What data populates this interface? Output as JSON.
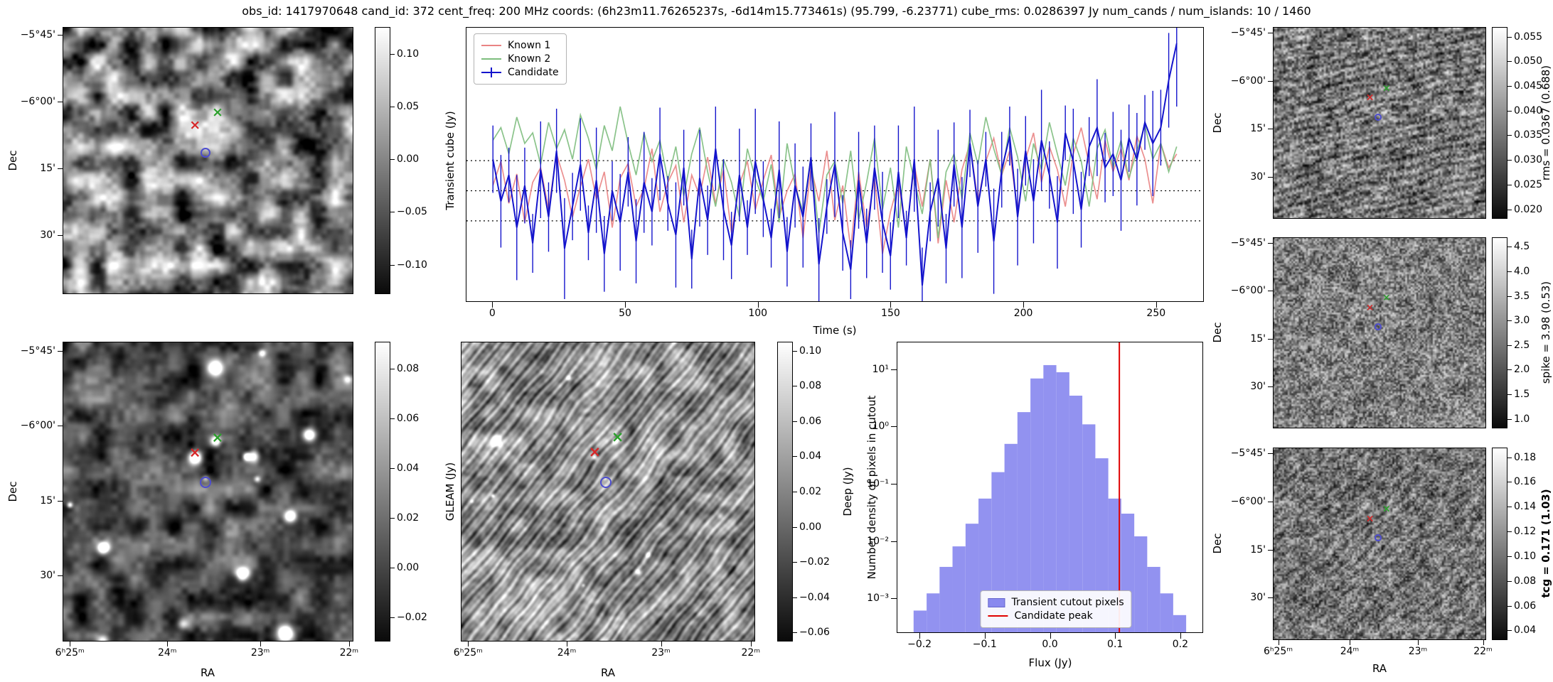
{
  "title": "obs_id: 1417970648 cand_id: 372 cent_freq: 200 MHz coords: (6h23m11.76265237s, -6d14m15.773461s) (95.799, -6.23771) cube_rms: 0.0286397 Jy num_cands / num_islands: 10 / 1460",
  "axes": {
    "dec_label": "Dec",
    "ra_label": "RA",
    "dec_ticks": [
      "−5°45'",
      "−6°00'",
      "15'",
      "30'"
    ],
    "ra_ticks": [
      "6ʰ25ᵐ",
      "24ᵐ",
      "23ᵐ",
      "22ᵐ"
    ]
  },
  "colorbars": {
    "transient": {
      "label": "Transient cube (Jy)",
      "ticks": [
        "0.10",
        "0.05",
        "0.00",
        "−0.05",
        "−0.10"
      ]
    },
    "gleam": {
      "label": "GLEAM (Jy)",
      "ticks": [
        "0.08",
        "0.06",
        "0.04",
        "0.02",
        "0.00",
        "−0.02"
      ]
    },
    "deep": {
      "label": "Deep (Jy)",
      "ticks": [
        "0.10",
        "0.08",
        "0.06",
        "0.04",
        "0.02",
        "0.00",
        "−0.02",
        "−0.04",
        "−0.06"
      ]
    },
    "rms": {
      "label": "rms = 0.0367 (0.688)",
      "ticks": [
        "0.055",
        "0.050",
        "0.045",
        "0.040",
        "0.035",
        "0.030",
        "0.025",
        "0.020"
      ]
    },
    "spike": {
      "label": "spike = 3.98 (0.53)",
      "ticks": [
        "4.5",
        "4.0",
        "3.5",
        "3.0",
        "2.5",
        "2.0",
        "1.5",
        "1.0"
      ]
    },
    "tcg": {
      "label": "tcg = 0.171 (1.03)",
      "ticks": [
        "0.18",
        "0.16",
        "0.14",
        "0.12",
        "0.10",
        "0.08",
        "0.06",
        "0.04"
      ],
      "bold": true
    }
  },
  "markers": {
    "known1": {
      "symbol": "x",
      "color": "#d62728",
      "rx": 0.455,
      "ry": 0.37
    },
    "known2": {
      "symbol": "x",
      "color": "#2ca02c",
      "rx": 0.533,
      "ry": 0.32
    },
    "candidate": {
      "symbol": "o",
      "color": "#4d4dd0",
      "rx": 0.492,
      "ry": 0.47
    }
  },
  "chart_data": [
    {
      "type": "line",
      "title": "",
      "xlabel": "Time (s)",
      "ylabel": "",
      "xlim": [
        -10,
        268
      ],
      "ylim": [
        -0.105,
        0.155
      ],
      "xticks": [
        0,
        50,
        100,
        150,
        200,
        250
      ],
      "xtick_labels": [
        "0",
        "50",
        "100",
        "150",
        "200",
        "250"
      ],
      "hlines": [
        0.0286397,
        0.0,
        -0.0286397
      ],
      "hline_style": "dotted",
      "legend_position": "upper left",
      "x": [
        0,
        3,
        6,
        9,
        12,
        15,
        18,
        21,
        24,
        27,
        30,
        33,
        36,
        39,
        42,
        45,
        48,
        51,
        54,
        57,
        60,
        63,
        66,
        69,
        72,
        75,
        78,
        81,
        84,
        87,
        90,
        93,
        96,
        99,
        102,
        105,
        108,
        111,
        114,
        117,
        120,
        123,
        126,
        129,
        132,
        135,
        138,
        141,
        144,
        147,
        150,
        153,
        156,
        159,
        162,
        165,
        168,
        171,
        174,
        177,
        180,
        183,
        186,
        189,
        192,
        195,
        198,
        201,
        204,
        207,
        210,
        213,
        216,
        219,
        222,
        225,
        228,
        231,
        234,
        237,
        240,
        243,
        246,
        249,
        252,
        255,
        258
      ],
      "yerr_cycle": [
        0.032,
        0.044,
        0.026,
        0.05,
        0.036,
        0.028,
        0.046,
        0.033,
        0.04,
        0.048
      ],
      "yerr_override": {
        "85": 0.045,
        "86": 0.06
      },
      "series": [
        {
          "name": "Known 1",
          "color": "#e98383",
          "values": [
            0.005,
            0.028,
            -0.012,
            0.016,
            -0.03,
            0.008,
            0.022,
            -0.018,
            0.035,
            0.01,
            -0.025,
            0.004,
            0.03,
            -0.008,
            0.018,
            -0.035,
            0.012,
            0.026,
            -0.015,
            0.002,
            0.04,
            -0.02,
            0.008,
            0.024,
            -0.03,
            0.015,
            -0.005,
            0.032,
            -0.012,
            0.02,
            -0.04,
            0.006,
            0.028,
            -0.018,
            0.01,
            0.034,
            -0.025,
            0.0,
            0.016,
            -0.045,
            0.022,
            -0.01,
            0.038,
            -0.028,
            0.005,
            -0.055,
            0.018,
            -0.035,
            0.012,
            -0.06,
            -0.02,
            0.008,
            -0.042,
            0.025,
            -0.015,
            0.03,
            -0.05,
            0.01,
            -0.03,
            0.02,
            0.045,
            -0.01,
            0.028,
            0.05,
            0.015,
            0.038,
            -0.02,
            0.03,
            0.055,
            0.008,
            0.042,
            0.02,
            -0.015,
            0.035,
            0.06,
            0.025,
            -0.008,
            0.048,
            0.018,
            0.04,
            0.01,
            0.052,
            0.03,
            -0.012,
            0.045,
            0.022,
            0.035
          ]
        },
        {
          "name": "Known 2",
          "color": "#7dbd7d",
          "values": [
            0.048,
            0.06,
            0.035,
            0.07,
            0.045,
            0.055,
            0.025,
            0.065,
            0.04,
            0.058,
            0.03,
            0.072,
            0.05,
            0.02,
            0.062,
            0.038,
            0.08,
            0.045,
            0.015,
            0.055,
            0.028,
            0.048,
            0.01,
            0.042,
            -0.005,
            0.035,
            0.06,
            0.018,
            -0.015,
            0.03,
            0.008,
            -0.025,
            0.04,
            0.012,
            -0.01,
            0.025,
            -0.03,
            0.045,
            0.005,
            -0.02,
            0.032,
            -0.04,
            0.015,
            0.028,
            -0.012,
            0.038,
            -0.028,
            0.008,
            0.05,
            -0.018,
            0.022,
            -0.035,
            0.042,
            0.01,
            -0.022,
            0.03,
            -0.045,
            0.018,
            0.035,
            -0.008,
            0.055,
            0.025,
            0.07,
            0.04,
            0.015,
            0.06,
            0.032,
            -0.01,
            0.045,
            0.02,
            0.065,
            0.035,
            0.005,
            0.05,
            0.028,
            -0.015,
            0.04,
            0.058,
            0.022,
            0.048,
            0.012,
            0.038,
            0.062,
            0.03,
            0.045,
            0.018,
            0.042
          ]
        },
        {
          "name": "Candidate",
          "color": "#1414cc",
          "values": [
            0.03,
            -0.01,
            0.015,
            -0.035,
            0.005,
            -0.05,
            0.02,
            -0.025,
            0.038,
            -0.055,
            -0.015,
            0.025,
            -0.04,
            0.01,
            -0.06,
            0.0,
            -0.03,
            0.018,
            -0.048,
            0.008,
            -0.02,
            0.035,
            -0.012,
            -0.042,
            0.022,
            -0.065,
            0.012,
            -0.028,
            0.04,
            -0.018,
            -0.052,
            0.015,
            -0.035,
            0.028,
            -0.008,
            -0.045,
            0.02,
            -0.058,
            0.005,
            -0.025,
            0.032,
            -0.07,
            -0.015,
            0.025,
            -0.04,
            -0.075,
            0.01,
            -0.05,
            0.022,
            -0.03,
            -0.062,
            0.018,
            -0.045,
            0.03,
            -0.09,
            -0.02,
            0.012,
            -0.055,
            0.025,
            -0.035,
            0.045,
            -0.015,
            0.03,
            -0.048,
            0.02,
            0.052,
            -0.025,
            0.038,
            -0.01,
            0.048,
            0.015,
            -0.03,
            0.055,
            0.028,
            -0.018,
            0.042,
            0.06,
            0.022,
            0.035,
            0.01,
            0.05,
            0.03,
            0.065,
            0.045,
            0.06,
            0.105,
            0.14
          ]
        }
      ]
    },
    {
      "type": "bar",
      "style": "histogram",
      "xlabel": "Flux (Jy)",
      "ylabel": "Number density of pixels in cutout",
      "yscale": "log",
      "xlim": [
        -0.235,
        0.235
      ],
      "ylim": [
        0.00025,
        30
      ],
      "xticks": [
        -0.2,
        -0.1,
        0.0,
        0.1,
        0.2
      ],
      "xtick_labels": [
        "−0.2",
        "−0.1",
        "0.0",
        "0.1",
        "0.2"
      ],
      "yticks": [
        10,
        1,
        0.1,
        0.01,
        0.001
      ],
      "ytick_labels": [
        "10¹",
        "10⁰",
        "10⁻¹",
        "10⁻²",
        "10⁻³"
      ],
      "bar_color": "#6e6eeb",
      "bin_width": 0.02,
      "bin_centers": [
        -0.2,
        -0.18,
        -0.16,
        -0.14,
        -0.12,
        -0.1,
        -0.08,
        -0.06,
        -0.04,
        -0.02,
        0.0,
        0.02,
        0.04,
        0.06,
        0.08,
        0.1,
        0.12,
        0.14,
        0.16,
        0.18,
        0.2
      ],
      "densities": [
        0.0006,
        0.0012,
        0.0035,
        0.008,
        0.02,
        0.055,
        0.16,
        0.5,
        1.8,
        7.0,
        12.0,
        9.0,
        3.5,
        1.1,
        0.28,
        0.055,
        0.03,
        0.012,
        0.0035,
        0.0012,
        0.0005
      ],
      "vline": {
        "x": 0.107,
        "color": "#e00000",
        "label": "Candidate peak"
      },
      "legend": [
        "Transient cutout pixels",
        "Candidate peak"
      ],
      "legend_position": "lower center"
    }
  ]
}
